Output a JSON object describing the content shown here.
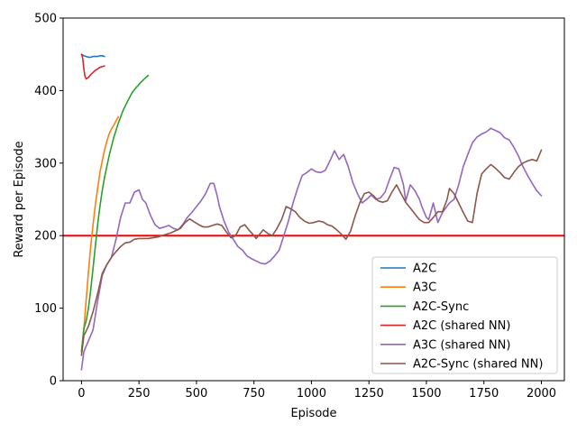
{
  "chart_data": {
    "type": "line",
    "title": "",
    "xlabel": "Episode",
    "ylabel": "Reward per Episode",
    "xlim": [
      -80,
      2100
    ],
    "ylim": [
      0,
      500
    ],
    "xticks": [
      0,
      250,
      500,
      750,
      1000,
      1250,
      1500,
      1750,
      2000
    ],
    "yticks": [
      0,
      100,
      200,
      300,
      400,
      500
    ],
    "grid": false,
    "legend_position": "lower-right",
    "threshold": {
      "y": 200,
      "color": "#ff0000"
    },
    "series": [
      {
        "name": "A2C",
        "color": "#1f77b4",
        "points": [
          [
            0,
            450
          ],
          [
            10,
            448
          ],
          [
            20,
            447
          ],
          [
            30,
            446
          ],
          [
            40,
            446
          ],
          [
            50,
            447
          ],
          [
            60,
            447
          ],
          [
            70,
            447
          ],
          [
            80,
            448
          ],
          [
            90,
            448
          ],
          [
            100,
            447
          ]
        ]
      },
      {
        "name": "A3C",
        "color": "#ff7f0e",
        "points": [
          [
            0,
            40
          ],
          [
            10,
            70
          ],
          [
            20,
            110
          ],
          [
            30,
            150
          ],
          [
            40,
            185
          ],
          [
            50,
            215
          ],
          [
            60,
            242
          ],
          [
            70,
            265
          ],
          [
            80,
            287
          ],
          [
            90,
            303
          ],
          [
            100,
            318
          ],
          [
            110,
            330
          ],
          [
            120,
            340
          ],
          [
            130,
            347
          ],
          [
            140,
            352
          ],
          [
            150,
            358
          ],
          [
            160,
            364
          ]
        ]
      },
      {
        "name": "A2C-Sync",
        "color": "#2ca02c",
        "points": [
          [
            0,
            40
          ],
          [
            10,
            72
          ],
          [
            20,
            82
          ],
          [
            30,
            100
          ],
          [
            40,
            125
          ],
          [
            50,
            155
          ],
          [
            60,
            185
          ],
          [
            70,
            215
          ],
          [
            80,
            240
          ],
          [
            90,
            262
          ],
          [
            100,
            280
          ],
          [
            120,
            310
          ],
          [
            140,
            335
          ],
          [
            160,
            355
          ],
          [
            180,
            372
          ],
          [
            200,
            385
          ],
          [
            220,
            397
          ],
          [
            240,
            405
          ],
          [
            260,
            412
          ],
          [
            280,
            418
          ],
          [
            290,
            421
          ]
        ]
      },
      {
        "name": "A2C (shared NN)",
        "color": "#d62728",
        "points": [
          [
            0,
            450
          ],
          [
            5,
            445
          ],
          [
            10,
            430
          ],
          [
            15,
            420
          ],
          [
            20,
            416
          ],
          [
            30,
            418
          ],
          [
            40,
            422
          ],
          [
            50,
            425
          ],
          [
            60,
            428
          ],
          [
            70,
            430
          ],
          [
            80,
            432
          ],
          [
            90,
            433
          ],
          [
            100,
            434
          ]
        ]
      },
      {
        "name": "A3C (shared NN)",
        "color": "#9467bd",
        "points": [
          [
            0,
            15
          ],
          [
            10,
            40
          ],
          [
            30,
            55
          ],
          [
            50,
            70
          ],
          [
            70,
            110
          ],
          [
            90,
            145
          ],
          [
            110,
            160
          ],
          [
            130,
            170
          ],
          [
            150,
            195
          ],
          [
            170,
            225
          ],
          [
            190,
            245
          ],
          [
            210,
            245
          ],
          [
            230,
            260
          ],
          [
            250,
            263
          ],
          [
            265,
            250
          ],
          [
            280,
            245
          ],
          [
            300,
            228
          ],
          [
            320,
            215
          ],
          [
            340,
            210
          ],
          [
            360,
            212
          ],
          [
            380,
            214
          ],
          [
            400,
            210
          ],
          [
            420,
            208
          ],
          [
            440,
            215
          ],
          [
            460,
            225
          ],
          [
            480,
            232
          ],
          [
            500,
            240
          ],
          [
            520,
            248
          ],
          [
            540,
            258
          ],
          [
            560,
            272
          ],
          [
            575,
            272
          ],
          [
            590,
            255
          ],
          [
            600,
            240
          ],
          [
            620,
            220
          ],
          [
            640,
            205
          ],
          [
            660,
            195
          ],
          [
            680,
            185
          ],
          [
            700,
            180
          ],
          [
            720,
            172
          ],
          [
            740,
            168
          ],
          [
            760,
            165
          ],
          [
            780,
            162
          ],
          [
            800,
            161
          ],
          [
            820,
            165
          ],
          [
            840,
            172
          ],
          [
            860,
            180
          ],
          [
            880,
            200
          ],
          [
            900,
            220
          ],
          [
            920,
            245
          ],
          [
            940,
            265
          ],
          [
            960,
            283
          ],
          [
            980,
            287
          ],
          [
            1000,
            292
          ],
          [
            1020,
            288
          ],
          [
            1040,
            287
          ],
          [
            1060,
            290
          ],
          [
            1080,
            303
          ],
          [
            1100,
            317
          ],
          [
            1120,
            305
          ],
          [
            1140,
            312
          ],
          [
            1160,
            295
          ],
          [
            1180,
            273
          ],
          [
            1200,
            258
          ],
          [
            1220,
            245
          ],
          [
            1240,
            250
          ],
          [
            1260,
            256
          ],
          [
            1280,
            250
          ],
          [
            1300,
            252
          ],
          [
            1320,
            260
          ],
          [
            1340,
            278
          ],
          [
            1360,
            294
          ],
          [
            1380,
            292
          ],
          [
            1400,
            270
          ],
          [
            1410,
            248
          ],
          [
            1430,
            270
          ],
          [
            1450,
            262
          ],
          [
            1470,
            250
          ],
          [
            1480,
            240
          ],
          [
            1500,
            225
          ],
          [
            1510,
            222
          ],
          [
            1530,
            245
          ],
          [
            1550,
            218
          ],
          [
            1570,
            232
          ],
          [
            1600,
            245
          ],
          [
            1620,
            250
          ],
          [
            1640,
            270
          ],
          [
            1660,
            295
          ],
          [
            1680,
            312
          ],
          [
            1700,
            328
          ],
          [
            1720,
            336
          ],
          [
            1740,
            340
          ],
          [
            1760,
            343
          ],
          [
            1780,
            348
          ],
          [
            1800,
            345
          ],
          [
            1820,
            342
          ],
          [
            1840,
            335
          ],
          [
            1860,
            332
          ],
          [
            1880,
            322
          ],
          [
            1900,
            310
          ],
          [
            1920,
            295
          ],
          [
            1940,
            283
          ],
          [
            1960,
            272
          ],
          [
            1980,
            262
          ],
          [
            2000,
            255
          ]
        ]
      },
      {
        "name": "A2C-Sync (shared NN)",
        "color": "#8c564b",
        "points": [
          [
            0,
            35
          ],
          [
            10,
            62
          ],
          [
            30,
            75
          ],
          [
            50,
            95
          ],
          [
            70,
            120
          ],
          [
            90,
            148
          ],
          [
            110,
            160
          ],
          [
            130,
            170
          ],
          [
            150,
            178
          ],
          [
            170,
            185
          ],
          [
            190,
            190
          ],
          [
            210,
            191
          ],
          [
            230,
            195
          ],
          [
            250,
            196
          ],
          [
            270,
            196
          ],
          [
            290,
            196
          ],
          [
            310,
            197
          ],
          [
            330,
            198
          ],
          [
            350,
            200
          ],
          [
            370,
            202
          ],
          [
            390,
            204
          ],
          [
            410,
            207
          ],
          [
            430,
            210
          ],
          [
            450,
            218
          ],
          [
            470,
            223
          ],
          [
            490,
            219
          ],
          [
            510,
            215
          ],
          [
            530,
            212
          ],
          [
            550,
            212
          ],
          [
            570,
            214
          ],
          [
            590,
            216
          ],
          [
            610,
            214
          ],
          [
            630,
            205
          ],
          [
            650,
            197
          ],
          [
            670,
            200
          ],
          [
            690,
            212
          ],
          [
            710,
            215
          ],
          [
            730,
            207
          ],
          [
            750,
            200
          ],
          [
            760,
            196
          ],
          [
            770,
            200
          ],
          [
            790,
            208
          ],
          [
            810,
            203
          ],
          [
            830,
            200
          ],
          [
            850,
            210
          ],
          [
            870,
            222
          ],
          [
            890,
            240
          ],
          [
            910,
            237
          ],
          [
            930,
            233
          ],
          [
            950,
            225
          ],
          [
            970,
            220
          ],
          [
            990,
            217
          ],
          [
            1010,
            218
          ],
          [
            1030,
            220
          ],
          [
            1050,
            219
          ],
          [
            1070,
            215
          ],
          [
            1090,
            213
          ],
          [
            1110,
            208
          ],
          [
            1130,
            202
          ],
          [
            1150,
            195
          ],
          [
            1170,
            206
          ],
          [
            1190,
            227
          ],
          [
            1210,
            245
          ],
          [
            1230,
            258
          ],
          [
            1250,
            260
          ],
          [
            1270,
            255
          ],
          [
            1290,
            248
          ],
          [
            1310,
            246
          ],
          [
            1330,
            248
          ],
          [
            1350,
            260
          ],
          [
            1370,
            270
          ],
          [
            1390,
            258
          ],
          [
            1410,
            246
          ],
          [
            1430,
            238
          ],
          [
            1450,
            230
          ],
          [
            1470,
            222
          ],
          [
            1490,
            218
          ],
          [
            1510,
            218
          ],
          [
            1530,
            225
          ],
          [
            1550,
            233
          ],
          [
            1570,
            233
          ],
          [
            1590,
            250
          ],
          [
            1600,
            265
          ],
          [
            1620,
            258
          ],
          [
            1640,
            245
          ],
          [
            1660,
            232
          ],
          [
            1680,
            220
          ],
          [
            1700,
            218
          ],
          [
            1720,
            258
          ],
          [
            1740,
            285
          ],
          [
            1760,
            292
          ],
          [
            1780,
            298
          ],
          [
            1800,
            293
          ],
          [
            1820,
            287
          ],
          [
            1840,
            280
          ],
          [
            1860,
            278
          ],
          [
            1880,
            287
          ],
          [
            1900,
            295
          ],
          [
            1920,
            300
          ],
          [
            1940,
            303
          ],
          [
            1960,
            305
          ],
          [
            1980,
            303
          ],
          [
            2000,
            318
          ]
        ]
      }
    ]
  }
}
